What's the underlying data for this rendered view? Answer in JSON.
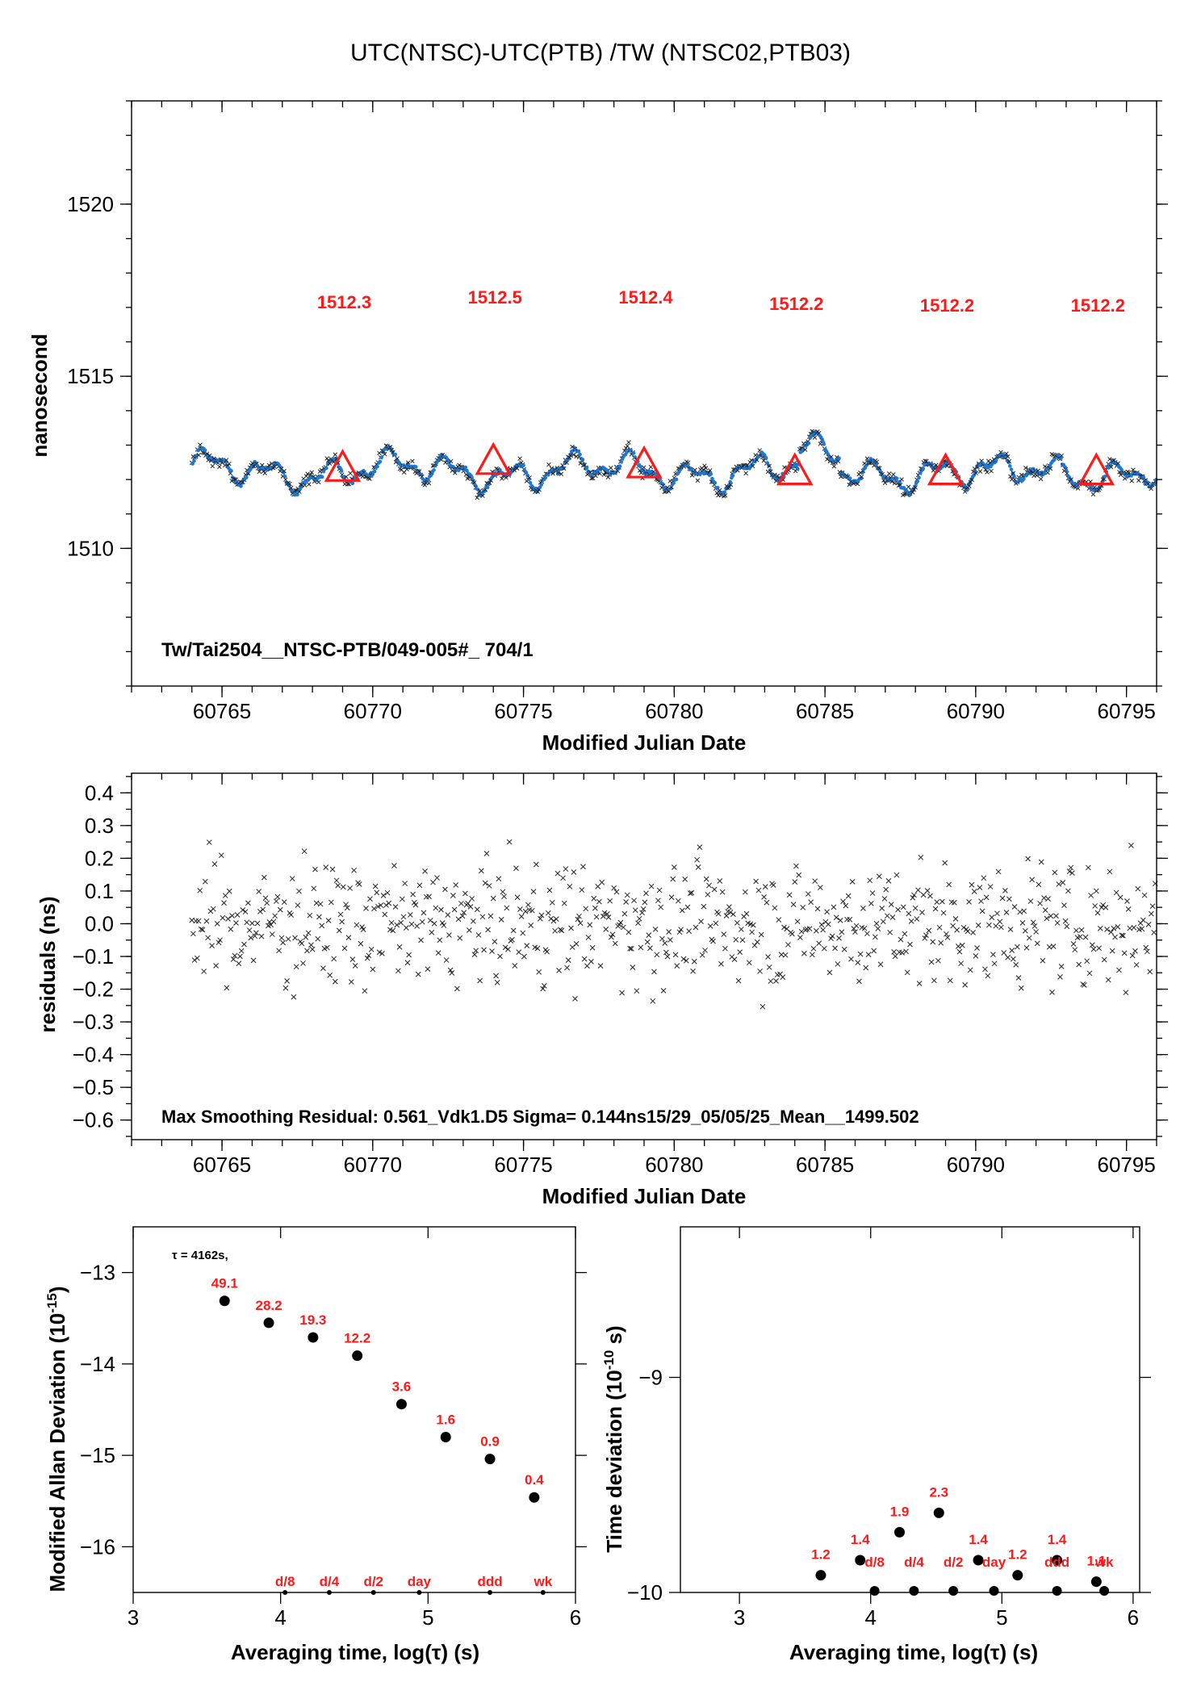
{
  "figure_title": "UTC(NTSC)-UTC(PTB)  /TW  (NTSC02,PTB03)",
  "colors": {
    "series": "#1f78d1",
    "raw": "#222222",
    "marker": "#ff1a1a",
    "label": "#ff1a1a"
  },
  "chart_data": [
    {
      "id": "time-series",
      "type": "scatter",
      "title": "UTC(NTSC)-UTC(PTB)  /TW  (NTSC02,PTB03)",
      "xlabel": "Modified Julian Date",
      "ylabel": "nanosecond",
      "xlim": [
        60762,
        60796
      ],
      "ylim": [
        1506,
        1523
      ],
      "xticks": [
        60765,
        60770,
        60775,
        60780,
        60785,
        60790,
        60795
      ],
      "yticks": [
        1510,
        1515,
        1520
      ],
      "annotation": "Tw/Tai2504__NTSC-PTB/049-005#_  704/1",
      "series_note": "Dense blue/black scatter of about 700 points between MJD 60764 and 60796, hovering near 1512.3 ns (range approx 1511.4-1513.5)",
      "markers": [
        {
          "x": 60769.0,
          "y": 1512.3,
          "label": "1512.3"
        },
        {
          "x": 60774.0,
          "y": 1512.5,
          "label": "1512.5"
        },
        {
          "x": 60779.0,
          "y": 1512.4,
          "label": "1512.4"
        },
        {
          "x": 60784.0,
          "y": 1512.2,
          "label": "1512.2"
        },
        {
          "x": 60789.0,
          "y": 1512.2,
          "label": "1512.2"
        },
        {
          "x": 60794.0,
          "y": 1512.2,
          "label": "1512.2"
        }
      ]
    },
    {
      "id": "residuals",
      "type": "scatter",
      "xlabel": "Modified Julian Date",
      "ylabel": "residuals (ns)",
      "xlim": [
        60762,
        60796
      ],
      "ylim": [
        -0.66,
        0.46
      ],
      "xticks": [
        60765,
        60770,
        60775,
        60780,
        60785,
        60790,
        60795
      ],
      "yticks": [
        0.4,
        0.3,
        0.2,
        0.1,
        0.0,
        -0.1,
        -0.2,
        -0.3,
        -0.4,
        -0.5,
        -0.6
      ],
      "ytick_labels": [
        "0.4",
        "0.3",
        "0.2",
        "0.1",
        "0.0",
        "−0.1",
        "−0.2",
        "−0.3",
        "−0.4",
        "−0.5",
        "−0.6"
      ],
      "annotation": "Max Smoothing Residual: 0.561_Vdk1.D5  Sigma= 0.144ns15/29_05/05/25_Mean__1499.502",
      "series_note": "About 700 residual points between MJD 60764 and 60796, spread within approx -0.44 to 0.37 ns"
    },
    {
      "id": "mod-allan-deviation",
      "type": "scatter",
      "xlabel": "Averaging time, log(τ) (s)",
      "ylabel": "Modified Allan Deviation (10",
      "ylabel_sup": "-15",
      "ylabel_tail": ")",
      "xlim": [
        3,
        6
      ],
      "ylim": [
        -16.5,
        -12.5
      ],
      "xticks": [
        3,
        4,
        5,
        6
      ],
      "yticks": [
        -13,
        -14,
        -15,
        -16
      ],
      "ytick_labels": [
        "−13",
        "−14",
        "−15",
        "−16"
      ],
      "tau_note": "τ = 4162s,",
      "points": [
        {
          "x": 3.62,
          "y": -13.31,
          "label": "49.1"
        },
        {
          "x": 3.92,
          "y": -13.55,
          "label": "28.2"
        },
        {
          "x": 4.22,
          "y": -13.71,
          "label": "19.3"
        },
        {
          "x": 4.52,
          "y": -13.91,
          "label": "12.2"
        },
        {
          "x": 4.82,
          "y": -14.44,
          "label": "3.6"
        },
        {
          "x": 5.12,
          "y": -14.8,
          "label": "1.6"
        },
        {
          "x": 5.42,
          "y": -15.04,
          "label": "0.9"
        },
        {
          "x": 5.72,
          "y": -15.46,
          "label": "0.4"
        }
      ],
      "baseline_labels": [
        {
          "x": 4.03,
          "label": "d/8"
        },
        {
          "x": 4.33,
          "label": "d/4"
        },
        {
          "x": 4.63,
          "label": "d/2"
        },
        {
          "x": 4.94,
          "label": "day"
        },
        {
          "x": 5.42,
          "label": "ddd"
        },
        {
          "x": 5.78,
          "label": "wk"
        }
      ]
    },
    {
      "id": "time-deviation",
      "type": "scatter",
      "xlabel": "Averaging time, log(τ) (s)",
      "ylabel": "Time deviation (10",
      "ylabel_sup": "-10",
      "ylabel_tail": " s)",
      "xlim": [
        2.55,
        6.05
      ],
      "ylim": [
        -10,
        -8.3
      ],
      "xticks": [
        3,
        4,
        5,
        6
      ],
      "yticks": [
        -9,
        -10
      ],
      "ytick_labels": [
        "−9",
        "−10"
      ],
      "points": [
        {
          "x": 3.62,
          "y": -9.92,
          "label": "1.2"
        },
        {
          "x": 3.92,
          "y": -9.85,
          "label": "1.4"
        },
        {
          "x": 4.22,
          "y": -9.72,
          "label": "1.9"
        },
        {
          "x": 4.52,
          "y": -9.63,
          "label": "2.3"
        },
        {
          "x": 4.82,
          "y": -9.85,
          "label": "1.4"
        },
        {
          "x": 5.12,
          "y": -9.92,
          "label": "1.2"
        },
        {
          "x": 5.42,
          "y": -9.85,
          "label": "1.4"
        },
        {
          "x": 5.72,
          "y": -9.95,
          "label": "1.1"
        }
      ],
      "baseline_labels": [
        {
          "x": 4.03,
          "label": "d/8"
        },
        {
          "x": 4.33,
          "label": "d/4"
        },
        {
          "x": 4.63,
          "label": "d/2"
        },
        {
          "x": 4.94,
          "label": "day"
        },
        {
          "x": 5.42,
          "label": "ddd"
        },
        {
          "x": 5.78,
          "label": "wk"
        }
      ]
    }
  ]
}
